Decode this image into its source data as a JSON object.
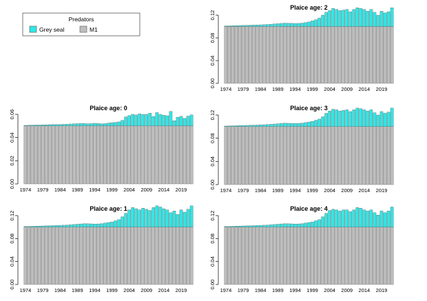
{
  "legend": {
    "title": "Predators",
    "items": [
      {
        "label": "Grey seal",
        "color": "#33E6E6"
      },
      {
        "label": "M1",
        "color": "#BEBEBE"
      }
    ]
  },
  "colors": {
    "grey_seal": "#33E6E6",
    "m1": "#BEBEBE",
    "border": "#555555"
  },
  "chart_data": [
    {
      "type": "bar",
      "stacked": true,
      "title": "Plaice age: 0",
      "x_start": 1974,
      "x_end": 2022,
      "x_tick_labels": [
        "1974",
        "1979",
        "1984",
        "1989",
        "1994",
        "1999",
        "2004",
        "2009",
        "2014",
        "2019"
      ],
      "ylim": [
        0,
        0.06
      ],
      "y_tick_labels": [
        "0.00",
        "0.02",
        "0.04",
        "0.06"
      ],
      "series": [
        {
          "name": "M1",
          "values": [
            0.05,
            0.05,
            0.05,
            0.05,
            0.05,
            0.05,
            0.05,
            0.05,
            0.05,
            0.05,
            0.05,
            0.05,
            0.05,
            0.05,
            0.05,
            0.05,
            0.05,
            0.05,
            0.05,
            0.05,
            0.05,
            0.05,
            0.05,
            0.05,
            0.05,
            0.05,
            0.05,
            0.05,
            0.05,
            0.05,
            0.05,
            0.05,
            0.05,
            0.05,
            0.05,
            0.05,
            0.05,
            0.05,
            0.05,
            0.05,
            0.05,
            0.05,
            0.05,
            0.05,
            0.05,
            0.05,
            0.05,
            0.05,
            0.05
          ]
        },
        {
          "name": "Grey seal",
          "values": [
            0.0005,
            0.0006,
            0.0007,
            0.0008,
            0.0008,
            0.0009,
            0.001,
            0.0011,
            0.0012,
            0.0013,
            0.0013,
            0.0014,
            0.0015,
            0.0017,
            0.0019,
            0.002,
            0.0021,
            0.0021,
            0.0019,
            0.002,
            0.0023,
            0.0021,
            0.0018,
            0.002,
            0.0025,
            0.0028,
            0.0031,
            0.0035,
            0.0048,
            0.0078,
            0.0089,
            0.01,
            0.0095,
            0.0105,
            0.0098,
            0.01,
            0.011,
            0.0082,
            0.0115,
            0.01,
            0.0092,
            0.0088,
            0.0125,
            0.0045,
            0.0075,
            0.0083,
            0.0065,
            0.0085,
            0.0095
          ]
        }
      ]
    },
    {
      "type": "bar",
      "stacked": true,
      "title": "Plaice age: 1",
      "x_start": 1974,
      "x_end": 2022,
      "x_tick_labels": [
        "1974",
        "1979",
        "1984",
        "1989",
        "1994",
        "1999",
        "2004",
        "2009",
        "2014",
        "2019"
      ],
      "ylim": [
        0,
        0.12
      ],
      "y_tick_labels": [
        "0.00",
        "0.04",
        "0.08",
        "0.12"
      ],
      "series": [
        {
          "name": "M1",
          "values": [
            0.1,
            0.1,
            0.1,
            0.1,
            0.1,
            0.1,
            0.1,
            0.1,
            0.1,
            0.1,
            0.1,
            0.1,
            0.1,
            0.1,
            0.1,
            0.1,
            0.1,
            0.1,
            0.1,
            0.1,
            0.1,
            0.1,
            0.1,
            0.1,
            0.1,
            0.1,
            0.1,
            0.1,
            0.1,
            0.1,
            0.1,
            0.1,
            0.1,
            0.1,
            0.1,
            0.1,
            0.1,
            0.1,
            0.1,
            0.1,
            0.1,
            0.1,
            0.1,
            0.1,
            0.1,
            0.1,
            0.1,
            0.1,
            0.1
          ]
        },
        {
          "name": "Grey seal",
          "values": [
            0.001,
            0.0012,
            0.0014,
            0.0016,
            0.0018,
            0.002,
            0.0022,
            0.0024,
            0.0026,
            0.0028,
            0.003,
            0.0033,
            0.0036,
            0.004,
            0.0045,
            0.005,
            0.0055,
            0.006,
            0.0058,
            0.0056,
            0.0054,
            0.0055,
            0.006,
            0.007,
            0.008,
            0.009,
            0.011,
            0.013,
            0.018,
            0.024,
            0.03,
            0.034,
            0.032,
            0.03,
            0.033,
            0.031,
            0.029,
            0.034,
            0.037,
            0.035,
            0.032,
            0.03,
            0.025,
            0.028,
            0.022,
            0.03,
            0.026,
            0.031,
            0.037
          ]
        }
      ]
    },
    {
      "type": "bar",
      "stacked": true,
      "title": "Plaice age: 2",
      "x_start": 1974,
      "x_end": 2022,
      "x_tick_labels": [
        "1974",
        "1979",
        "1984",
        "1989",
        "1994",
        "1999",
        "2004",
        "2009",
        "2014",
        "2019"
      ],
      "ylim": [
        0,
        0.12
      ],
      "y_tick_labels": [
        "0.00",
        "0.04",
        "0.08",
        "0.12"
      ],
      "series": [
        {
          "name": "M1",
          "values": [
            0.1,
            0.1,
            0.1,
            0.1,
            0.1,
            0.1,
            0.1,
            0.1,
            0.1,
            0.1,
            0.1,
            0.1,
            0.1,
            0.1,
            0.1,
            0.1,
            0.1,
            0.1,
            0.1,
            0.1,
            0.1,
            0.1,
            0.1,
            0.1,
            0.1,
            0.1,
            0.1,
            0.1,
            0.1,
            0.1,
            0.1,
            0.1,
            0.1,
            0.1,
            0.1,
            0.1,
            0.1,
            0.1,
            0.1,
            0.1,
            0.1,
            0.1,
            0.1,
            0.1,
            0.1,
            0.1,
            0.1,
            0.1,
            0.1
          ]
        },
        {
          "name": "Grey seal",
          "values": [
            0.001,
            0.0012,
            0.0014,
            0.0016,
            0.0018,
            0.002,
            0.0022,
            0.0024,
            0.0026,
            0.0028,
            0.003,
            0.0033,
            0.0036,
            0.004,
            0.0045,
            0.005,
            0.0055,
            0.006,
            0.0058,
            0.0056,
            0.0054,
            0.0055,
            0.006,
            0.007,
            0.008,
            0.01,
            0.012,
            0.015,
            0.02,
            0.025,
            0.028,
            0.032,
            0.03,
            0.028,
            0.029,
            0.03,
            0.026,
            0.03,
            0.033,
            0.032,
            0.03,
            0.027,
            0.03,
            0.025,
            0.02,
            0.027,
            0.024,
            0.026,
            0.033
          ]
        }
      ]
    },
    {
      "type": "bar",
      "stacked": true,
      "title": "Plaice age: 3",
      "x_start": 1974,
      "x_end": 2022,
      "x_tick_labels": [
        "1974",
        "1979",
        "1984",
        "1989",
        "1994",
        "1999",
        "2004",
        "2009",
        "2014",
        "2019"
      ],
      "ylim": [
        0,
        0.12
      ],
      "y_tick_labels": [
        "0.00",
        "0.04",
        "0.08",
        "0.12"
      ],
      "series": [
        {
          "name": "M1",
          "values": [
            0.1,
            0.1,
            0.1,
            0.1,
            0.1,
            0.1,
            0.1,
            0.1,
            0.1,
            0.1,
            0.1,
            0.1,
            0.1,
            0.1,
            0.1,
            0.1,
            0.1,
            0.1,
            0.1,
            0.1,
            0.1,
            0.1,
            0.1,
            0.1,
            0.1,
            0.1,
            0.1,
            0.1,
            0.1,
            0.1,
            0.1,
            0.1,
            0.1,
            0.1,
            0.1,
            0.1,
            0.1,
            0.1,
            0.1,
            0.1,
            0.1,
            0.1,
            0.1,
            0.1,
            0.1,
            0.1,
            0.1,
            0.1,
            0.1
          ]
        },
        {
          "name": "Grey seal",
          "values": [
            0.001,
            0.0012,
            0.0014,
            0.0016,
            0.0018,
            0.002,
            0.0022,
            0.0024,
            0.0026,
            0.0028,
            0.003,
            0.0033,
            0.0036,
            0.004,
            0.0045,
            0.005,
            0.0055,
            0.006,
            0.0058,
            0.0056,
            0.0054,
            0.0055,
            0.006,
            0.007,
            0.008,
            0.009,
            0.011,
            0.013,
            0.017,
            0.023,
            0.027,
            0.03,
            0.029,
            0.027,
            0.028,
            0.029,
            0.026,
            0.029,
            0.032,
            0.031,
            0.029,
            0.027,
            0.029,
            0.024,
            0.02,
            0.026,
            0.023,
            0.025,
            0.032
          ]
        }
      ]
    },
    {
      "type": "bar",
      "stacked": true,
      "title": "Plaice age: 4",
      "x_start": 1974,
      "x_end": 2022,
      "x_tick_labels": [
        "1974",
        "1979",
        "1984",
        "1989",
        "1994",
        "1999",
        "2004",
        "2009",
        "2014",
        "2019"
      ],
      "ylim": [
        0,
        0.12
      ],
      "y_tick_labels": [
        "0.00",
        "0.04",
        "0.08",
        "0.12"
      ],
      "series": [
        {
          "name": "M1",
          "values": [
            0.1,
            0.1,
            0.1,
            0.1,
            0.1,
            0.1,
            0.1,
            0.1,
            0.1,
            0.1,
            0.1,
            0.1,
            0.1,
            0.1,
            0.1,
            0.1,
            0.1,
            0.1,
            0.1,
            0.1,
            0.1,
            0.1,
            0.1,
            0.1,
            0.1,
            0.1,
            0.1,
            0.1,
            0.1,
            0.1,
            0.1,
            0.1,
            0.1,
            0.1,
            0.1,
            0.1,
            0.1,
            0.1,
            0.1,
            0.1,
            0.1,
            0.1,
            0.1,
            0.1,
            0.1,
            0.1,
            0.1,
            0.1,
            0.1
          ]
        },
        {
          "name": "Grey seal",
          "values": [
            0.001,
            0.0012,
            0.0014,
            0.0016,
            0.0018,
            0.002,
            0.0022,
            0.0024,
            0.0026,
            0.0028,
            0.003,
            0.0033,
            0.0036,
            0.004,
            0.0045,
            0.005,
            0.0055,
            0.006,
            0.0058,
            0.0056,
            0.0054,
            0.0055,
            0.006,
            0.007,
            0.008,
            0.009,
            0.011,
            0.013,
            0.018,
            0.024,
            0.029,
            0.031,
            0.03,
            0.028,
            0.03,
            0.03,
            0.027,
            0.03,
            0.034,
            0.033,
            0.03,
            0.028,
            0.03,
            0.025,
            0.021,
            0.028,
            0.025,
            0.028,
            0.035
          ]
        }
      ]
    }
  ]
}
